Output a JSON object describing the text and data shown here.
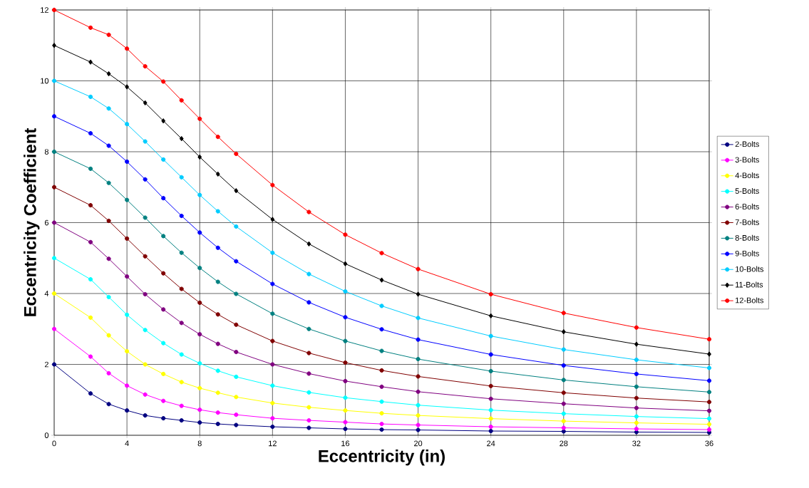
{
  "chart_data": {
    "type": "line",
    "xlabel": "Eccentricity (in)",
    "ylabel": "Eccentricity Coefficient",
    "x": [
      0,
      2,
      3,
      4,
      5,
      6,
      7,
      8,
      9,
      10,
      12,
      14,
      16,
      18,
      20,
      24,
      28,
      32,
      36
    ],
    "xlim": [
      0,
      36
    ],
    "xticks": [
      0,
      4,
      8,
      12,
      16,
      20,
      24,
      28,
      32,
      36
    ],
    "ylim": [
      0,
      12
    ],
    "yticks": [
      0,
      2,
      4,
      6,
      8,
      10,
      12
    ],
    "grid": true,
    "legend": "right",
    "marker": "circle",
    "line_style": "solid",
    "series": [
      {
        "name": "2-Bolts",
        "color": "#000080",
        "values": [
          2,
          1.18,
          0.88,
          0.7,
          0.56,
          0.48,
          0.42,
          0.36,
          0.32,
          0.29,
          0.24,
          0.21,
          0.18,
          0.16,
          0.15,
          0.12,
          0.11,
          0.09,
          0.08
        ]
      },
      {
        "name": "3-Bolts",
        "color": "#ff00ff",
        "values": [
          3,
          2.22,
          1.75,
          1.4,
          1.15,
          0.97,
          0.83,
          0.72,
          0.64,
          0.58,
          0.48,
          0.42,
          0.37,
          0.32,
          0.29,
          0.24,
          0.21,
          0.18,
          0.16
        ]
      },
      {
        "name": "4-Bolts",
        "color": "#ffff00",
        "values": [
          4,
          3.32,
          2.82,
          2.37,
          2.0,
          1.73,
          1.5,
          1.33,
          1.2,
          1.08,
          0.91,
          0.79,
          0.7,
          0.62,
          0.56,
          0.47,
          0.4,
          0.35,
          0.31
        ]
      },
      {
        "name": "5-Bolts",
        "color": "#00ffff",
        "values": [
          5,
          4.4,
          3.9,
          3.4,
          2.97,
          2.6,
          2.28,
          2.03,
          1.82,
          1.65,
          1.4,
          1.21,
          1.06,
          0.95,
          0.85,
          0.71,
          0.61,
          0.53,
          0.47
        ]
      },
      {
        "name": "6-Bolts",
        "color": "#800080",
        "values": [
          6,
          5.45,
          4.98,
          4.48,
          3.98,
          3.55,
          3.17,
          2.85,
          2.58,
          2.35,
          2.0,
          1.74,
          1.53,
          1.37,
          1.23,
          1.03,
          0.89,
          0.77,
          0.69
        ]
      },
      {
        "name": "7-Bolts",
        "color": "#800000",
        "values": [
          7,
          6.49,
          6.05,
          5.55,
          5.05,
          4.57,
          4.13,
          3.74,
          3.41,
          3.12,
          2.66,
          2.32,
          2.05,
          1.83,
          1.66,
          1.39,
          1.2,
          1.05,
          0.94
        ]
      },
      {
        "name": "8-Bolts",
        "color": "#008080",
        "values": [
          8,
          7.52,
          7.12,
          6.64,
          6.14,
          5.62,
          5.15,
          4.72,
          4.33,
          3.99,
          3.43,
          3.0,
          2.66,
          2.38,
          2.15,
          1.81,
          1.56,
          1.37,
          1.22
        ]
      },
      {
        "name": "9-Bolts",
        "color": "#0000ff",
        "values": [
          9,
          8.52,
          8.17,
          7.72,
          7.22,
          6.69,
          6.19,
          5.72,
          5.29,
          4.91,
          4.27,
          3.75,
          3.33,
          2.99,
          2.7,
          2.28,
          1.97,
          1.73,
          1.54
        ]
      },
      {
        "name": "10-Bolts",
        "color": "#00ccff",
        "values": [
          10,
          9.55,
          9.22,
          8.78,
          8.29,
          7.78,
          7.28,
          6.78,
          6.32,
          5.89,
          5.15,
          4.55,
          4.06,
          3.65,
          3.31,
          2.8,
          2.42,
          2.13,
          1.9
        ]
      },
      {
        "name": "11-Bolts",
        "color": "#000000",
        "marker": "diamond",
        "values": [
          11,
          10.53,
          10.2,
          9.83,
          9.38,
          8.87,
          8.37,
          7.85,
          7.37,
          6.9,
          6.09,
          5.4,
          4.84,
          4.38,
          3.98,
          3.37,
          2.92,
          2.57,
          2.29
        ]
      },
      {
        "name": "12-Bolts",
        "color": "#ff0000",
        "values": [
          12,
          11.5,
          11.3,
          10.91,
          10.41,
          9.98,
          9.45,
          8.93,
          8.42,
          7.94,
          7.06,
          6.3,
          5.66,
          5.14,
          4.69,
          3.98,
          3.45,
          3.04,
          2.71
        ]
      }
    ]
  }
}
